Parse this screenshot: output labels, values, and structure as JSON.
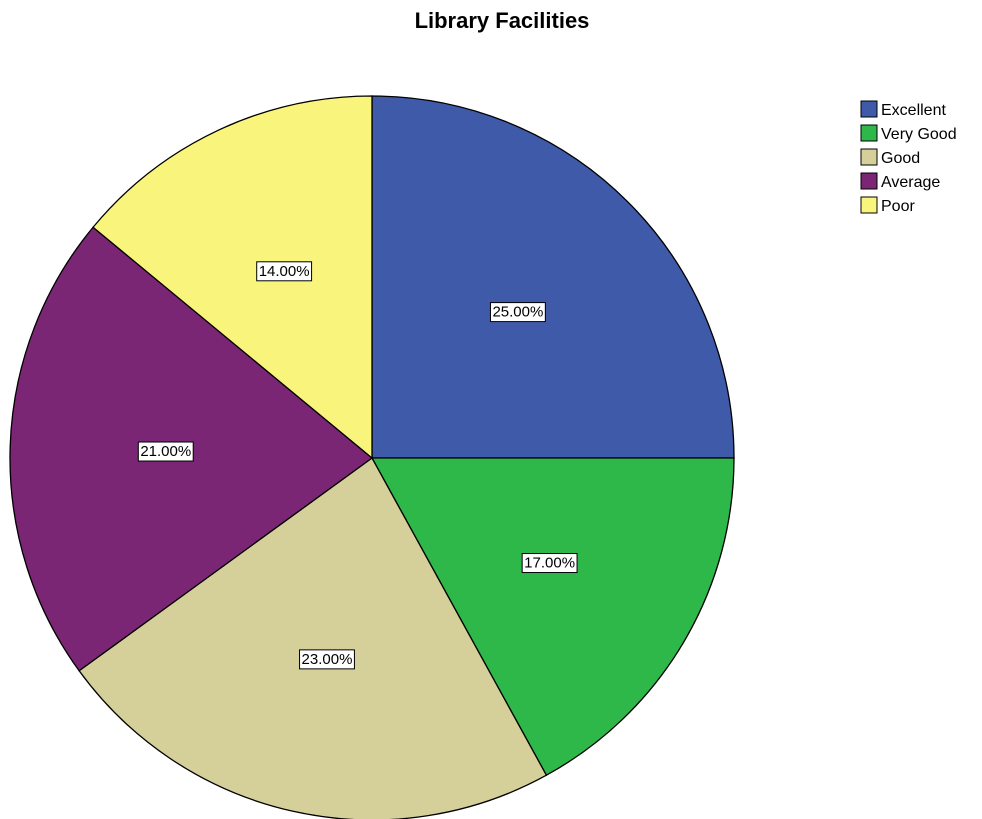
{
  "chart_data": {
    "type": "pie",
    "title": "Library Facilities",
    "categories": [
      "Excellent",
      "Very Good",
      "Good",
      "Average",
      "Poor"
    ],
    "values": [
      25.0,
      17.0,
      23.0,
      21.0,
      14.0
    ],
    "data_labels": [
      "25.00%",
      "17.00%",
      "23.00%",
      "21.00%",
      "14.00%"
    ],
    "colors": [
      "#3f5aa8",
      "#2eb84a",
      "#d5cf9a",
      "#7b2674",
      "#f9f57c"
    ],
    "start_angle_deg": 0,
    "direction": "clockwise",
    "legend_position": "top-right"
  }
}
